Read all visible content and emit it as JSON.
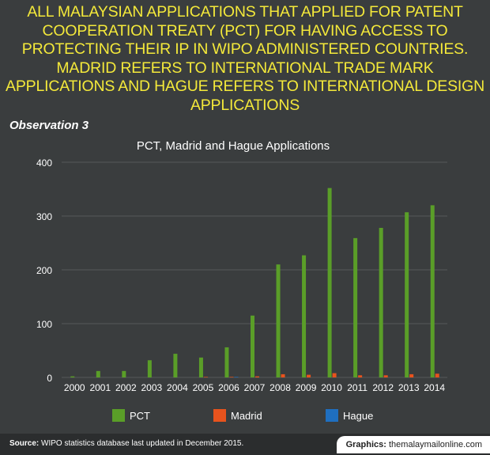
{
  "headline": "ALL MALAYSIAN APPLICATIONS THAT APPLIED FOR PATENT COOPERATION TREATY (PCT) FOR HAVING ACCESS TO PROTECTING THEIR IP IN WIPO ADMINISTERED COUNTRIES. MADRID REFERS TO INTERNATIONAL TRADE MARK APPLICATIONS AND HAGUE REFERS TO INTERNATIONAL DESIGN APPLICATIONS",
  "observation": "Observation 3",
  "footer": {
    "source_label": "Source:",
    "source_text": "WIPO statistics database last updated in December 2015.",
    "credit_label": "Graphics:",
    "credit_text": "themalaymailonline.com"
  },
  "colors": {
    "background": "#3a3d3e",
    "headline": "#f4e93a",
    "pct": "#5a9e28",
    "madrid": "#e8531d",
    "hague": "#1f6fc0"
  },
  "chart_data": {
    "type": "bar",
    "title": "PCT, Madrid and Hague Applications",
    "categories": [
      "2000",
      "2001",
      "2002",
      "2003",
      "2004",
      "2005",
      "2006",
      "2007",
      "2008",
      "2009",
      "2010",
      "2011",
      "2012",
      "2013",
      "2014"
    ],
    "series": [
      {
        "name": "PCT",
        "color": "#5a9e28",
        "values": [
          2,
          12,
          12,
          32,
          44,
          37,
          56,
          115,
          210,
          227,
          352,
          259,
          278,
          307,
          320
        ]
      },
      {
        "name": "Madrid",
        "color": "#e8531d",
        "values": [
          0,
          0,
          0,
          0,
          0,
          1,
          1,
          2,
          6,
          5,
          8,
          4,
          4,
          6,
          7
        ]
      },
      {
        "name": "Hague",
        "color": "#1f6fc0",
        "values": [
          0,
          0,
          0,
          0,
          0,
          0,
          1,
          0,
          0,
          0,
          0,
          0,
          0,
          0,
          0
        ]
      }
    ],
    "yticks": [
      0,
      100,
      200,
      300,
      400
    ],
    "ylim": [
      0,
      400
    ],
    "grid": true,
    "legend": "bottom"
  }
}
